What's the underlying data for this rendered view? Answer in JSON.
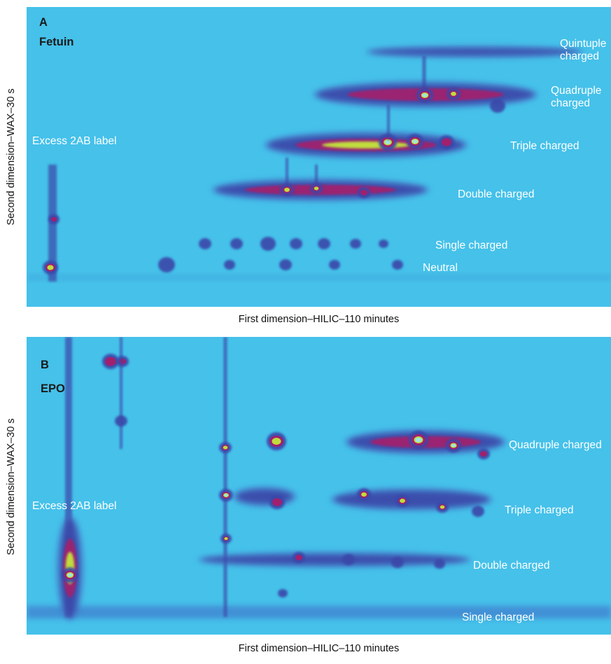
{
  "panels": [
    {
      "letter": "A",
      "protein": "Fetuin",
      "xlabel": "First dimension–HILIC–110 minutes",
      "ylabel": "Second dimension–WAX–30 s",
      "excess_label": "Excess 2AB label",
      "charge_labels": [
        "Quintuple\ncharged",
        "Quadruple\ncharged",
        "Triple charged",
        "Double charged",
        "Single charged",
        "Neutral"
      ]
    },
    {
      "letter": "B",
      "protein": "EPO",
      "xlabel": "First dimension–HILIC–110 minutes",
      "ylabel": "Second dimension–WAX–30 s",
      "excess_label": "Excess 2AB label",
      "charge_labels": [
        "Quadruple charged",
        "Triple charged",
        "Double charged",
        "Single charged"
      ]
    }
  ],
  "chart_data": [
    {
      "type": "heatmap",
      "title": "Fetuin",
      "xlabel": "First dimension–HILIC–110 minutes",
      "ylabel": "Second dimension–WAX–30 s",
      "bands": [
        "Neutral",
        "Single charged",
        "Double charged",
        "Triple charged",
        "Quadruple charged",
        "Quintuple charged"
      ],
      "annotations": [
        "Excess 2AB label"
      ],
      "colors": {
        "background": "#45c1ea",
        "low": "#3a46a8",
        "mid": "#a0206e",
        "high": "#c0dc3c",
        "peak": "#9ee8e0"
      }
    },
    {
      "type": "heatmap",
      "title": "EPO",
      "xlabel": "First dimension–HILIC–110 minutes",
      "ylabel": "Second dimension–WAX–30 s",
      "bands": [
        "Single charged",
        "Double charged",
        "Triple charged",
        "Quadruple charged"
      ],
      "annotations": [
        "Excess 2AB label"
      ],
      "colors": {
        "background": "#45c1ea",
        "low": "#3a46a8",
        "mid": "#a0206e",
        "high": "#c0dc3c",
        "peak": "#9ee8e0"
      }
    }
  ]
}
